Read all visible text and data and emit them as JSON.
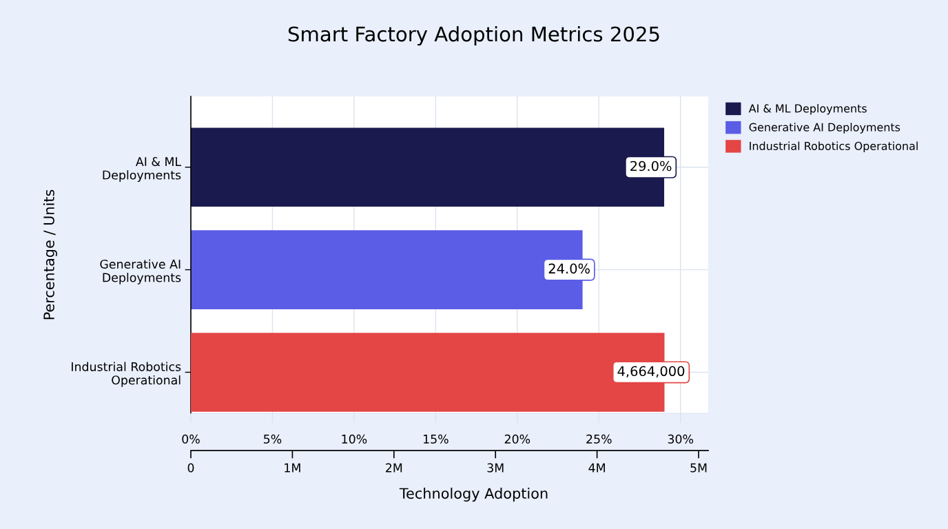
{
  "chart_data": {
    "type": "bar",
    "orientation": "horizontal",
    "title": "Smart Factory Adoption Metrics 2025",
    "xlabel": "Technology Adoption",
    "ylabel": "Percentage / Units",
    "categories": [
      "AI & ML\nDeployments",
      "Generative AI\nDeployments",
      "Industrial Robotics\nOperational"
    ],
    "series": [
      {
        "name": "AI & ML Deployments",
        "color": "#1b1a4f",
        "values": [
          29.0,
          null,
          null
        ],
        "value_labels": [
          "29.0%",
          null,
          null
        ]
      },
      {
        "name": "Generative AI Deployments",
        "color": "#5b5de6",
        "values": [
          null,
          24.0,
          null
        ],
        "value_labels": [
          null,
          "24.0%",
          null
        ]
      },
      {
        "name": "Industrial Robotics Operational",
        "color": "#e44545",
        "axis": "x2",
        "values": [
          null,
          null,
          4664000
        ],
        "value_labels": [
          null,
          null,
          "4,664,000"
        ]
      }
    ],
    "xlim": [
      0,
      31.7
    ],
    "xticks": [
      {
        "value": 0,
        "label": "0%"
      },
      {
        "value": 5,
        "label": "5%"
      },
      {
        "value": 10,
        "label": "10%"
      },
      {
        "value": 15,
        "label": "15%"
      },
      {
        "value": 20,
        "label": "20%"
      },
      {
        "value": 25,
        "label": "25%"
      },
      {
        "value": 30,
        "label": "30%"
      }
    ],
    "x2lim": [
      0,
      5095000
    ],
    "x2ticks": [
      0,
      {
        "value": 1000000,
        "label": "1M"
      },
      {
        "value": 2000000,
        "label": "2M"
      },
      {
        "value": 3000000,
        "label": "3M"
      },
      {
        "value": 4000000,
        "label": "4M"
      },
      {
        "value": 5000000,
        "label": "5M"
      }
    ],
    "grid": true,
    "legend": "top right"
  }
}
